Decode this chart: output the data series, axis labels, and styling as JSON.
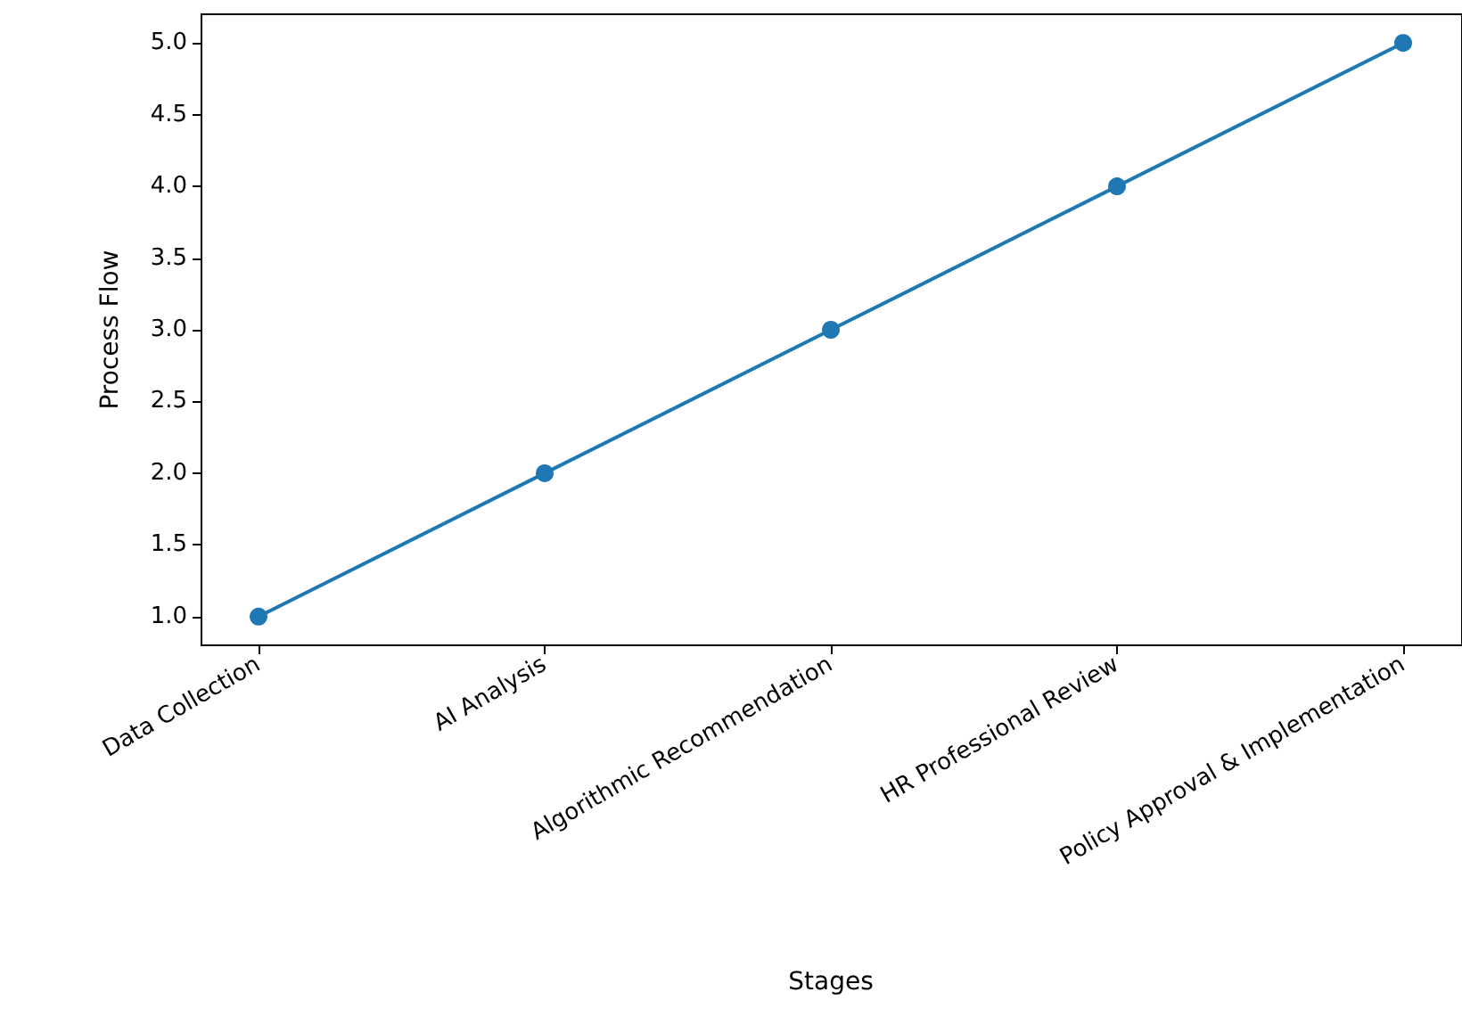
{
  "chart_data": {
    "type": "line",
    "xlabel": "Stages",
    "ylabel": "Process Flow",
    "categories": [
      "Data Collection",
      "AI Analysis",
      "Algorithmic Recommendation",
      "HR Professional Review",
      "Policy Approval & Implementation"
    ],
    "series": [
      {
        "color": "#1f77b4",
        "values": [
          1,
          2,
          3,
          4,
          5
        ]
      }
    ],
    "ylim": [
      0.8,
      5.2
    ],
    "yticks": [
      {
        "value": 1,
        "label": "1.0"
      },
      {
        "value": 1.5,
        "label": "1.5"
      },
      {
        "value": 2,
        "label": "2.0"
      },
      {
        "value": 2.5,
        "label": "2.5"
      },
      {
        "value": 3,
        "label": "3.0"
      },
      {
        "value": 3.5,
        "label": "3.5"
      },
      {
        "value": 4,
        "label": "4.0"
      },
      {
        "value": 4.5,
        "label": "4.5"
      },
      {
        "value": 5,
        "label": "5.0"
      }
    ],
    "marker": "circle",
    "line_style": "solid"
  }
}
